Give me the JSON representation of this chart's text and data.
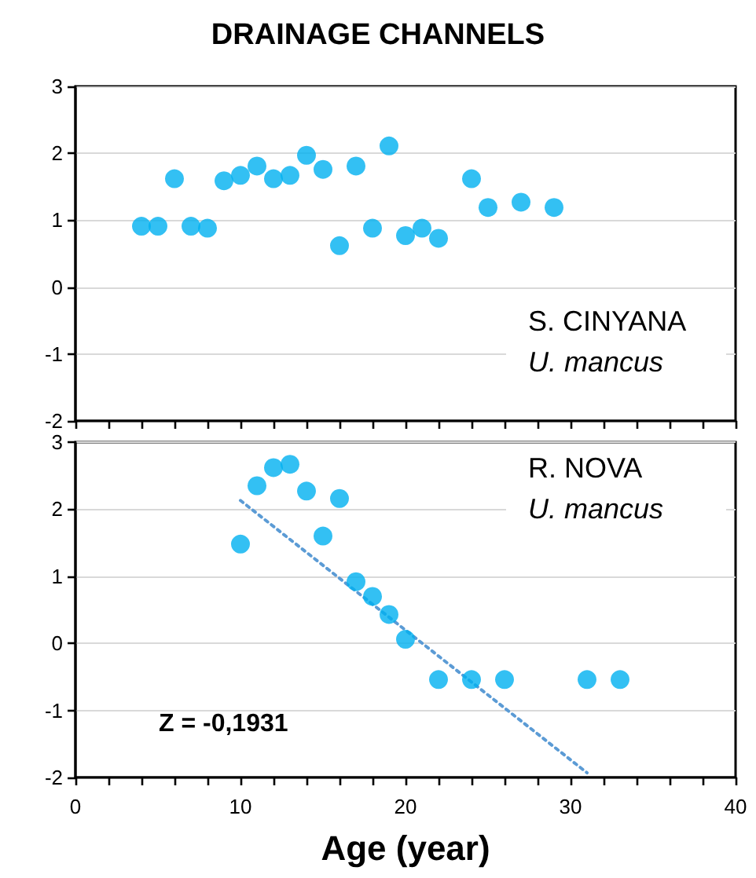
{
  "chart_data": [
    {
      "type": "scatter",
      "title": "DRAINAGE CHANNELS",
      "annotations": [
        "S. CINYANA",
        "U. mancus"
      ],
      "xlim": [
        0,
        40
      ],
      "xticks": [
        0,
        2,
        4,
        6,
        8,
        10,
        12,
        14,
        16,
        18,
        20,
        22,
        24,
        26,
        28,
        30,
        32,
        34,
        36,
        38,
        40
      ],
      "ylim": [
        -2,
        3
      ],
      "yticks": [
        -2,
        -1,
        0,
        1,
        2,
        3
      ],
      "tick_labels": "y",
      "grid": "y",
      "marker": "circle",
      "series": [
        {
          "color": "#00b0f0",
          "x": [
            4,
            5,
            6,
            7,
            8,
            9,
            10,
            11,
            12,
            13,
            14,
            15,
            16,
            17,
            18,
            19,
            20,
            21,
            22,
            24,
            25,
            27,
            29
          ],
          "values": [
            0.91,
            0.91,
            1.62,
            0.91,
            0.88,
            1.59,
            1.67,
            1.81,
            1.62,
            1.67,
            1.97,
            1.76,
            0.62,
            1.81,
            0.88,
            2.11,
            0.77,
            0.88,
            0.73,
            1.62,
            1.19,
            1.27,
            1.19
          ]
        }
      ]
    },
    {
      "type": "scatter",
      "xlabel": "Age (year)",
      "annotations": [
        "R. NOVA",
        "U. mancus",
        "Z = -0,1931"
      ],
      "xlim": [
        0,
        40
      ],
      "xticks": [
        {
          "value": 0,
          "label": "0"
        },
        {
          "value": 2,
          "label": null
        },
        {
          "value": 4,
          "label": null
        },
        {
          "value": 6,
          "label": null
        },
        {
          "value": 8,
          "label": null
        },
        {
          "value": 10,
          "label": "10"
        },
        {
          "value": 12,
          "label": null
        },
        {
          "value": 14,
          "label": null
        },
        {
          "value": 16,
          "label": null
        },
        {
          "value": 18,
          "label": null
        },
        {
          "value": 20,
          "label": "20"
        },
        {
          "value": 22,
          "label": null
        },
        {
          "value": 24,
          "label": null
        },
        {
          "value": 26,
          "label": null
        },
        {
          "value": 28,
          "label": null
        },
        {
          "value": 30,
          "label": "30"
        },
        {
          "value": 32,
          "label": null
        },
        {
          "value": 34,
          "label": null
        },
        {
          "value": 36,
          "label": null
        },
        {
          "value": 38,
          "label": null
        },
        {
          "value": 40,
          "label": "40"
        }
      ],
      "ylim": [
        -2,
        3
      ],
      "yticks": [
        -2,
        -1,
        0,
        1,
        2,
        3
      ],
      "grid": "y",
      "marker": "circle",
      "series": [
        {
          "color": "#00b0f0",
          "x": [
            10,
            11,
            12,
            13,
            14,
            15,
            16,
            17,
            18,
            19,
            20,
            22,
            24,
            26,
            31,
            33
          ],
          "values": [
            1.48,
            2.35,
            2.62,
            2.67,
            2.27,
            1.6,
            2.16,
            0.92,
            0.7,
            0.43,
            0.06,
            -0.54,
            -0.54,
            -0.54,
            -0.54,
            -0.54
          ]
        },
        {
          "type": "line",
          "color": "#5b9bd5",
          "line_style": "dotted",
          "marker": "none",
          "x": [
            10,
            31
          ],
          "values": [
            2.13,
            -1.93
          ]
        }
      ]
    }
  ]
}
